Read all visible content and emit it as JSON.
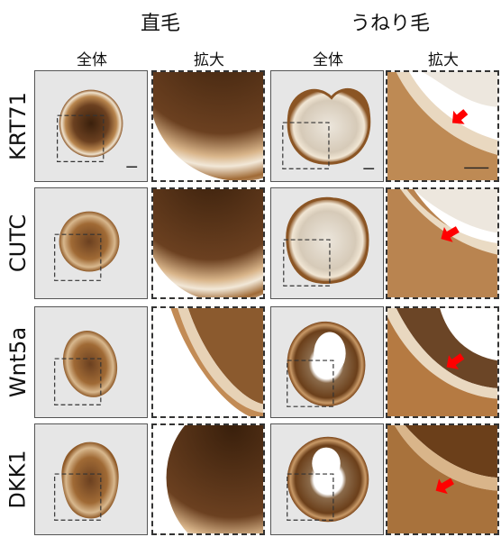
{
  "groups": {
    "straight": "直毛",
    "wavy": "うねり毛"
  },
  "columns": {
    "whole": "全体",
    "zoom": "拡大"
  },
  "rows": [
    "KRT71",
    "CUTC",
    "Wnt5a",
    "DKK1"
  ],
  "colors": {
    "stain_dark": "#5a3417",
    "stain_mid": "#9c6633",
    "stain_light": "#d9b58a",
    "arrow": "#ff0000",
    "panel_bg": "#e6e6e6"
  }
}
